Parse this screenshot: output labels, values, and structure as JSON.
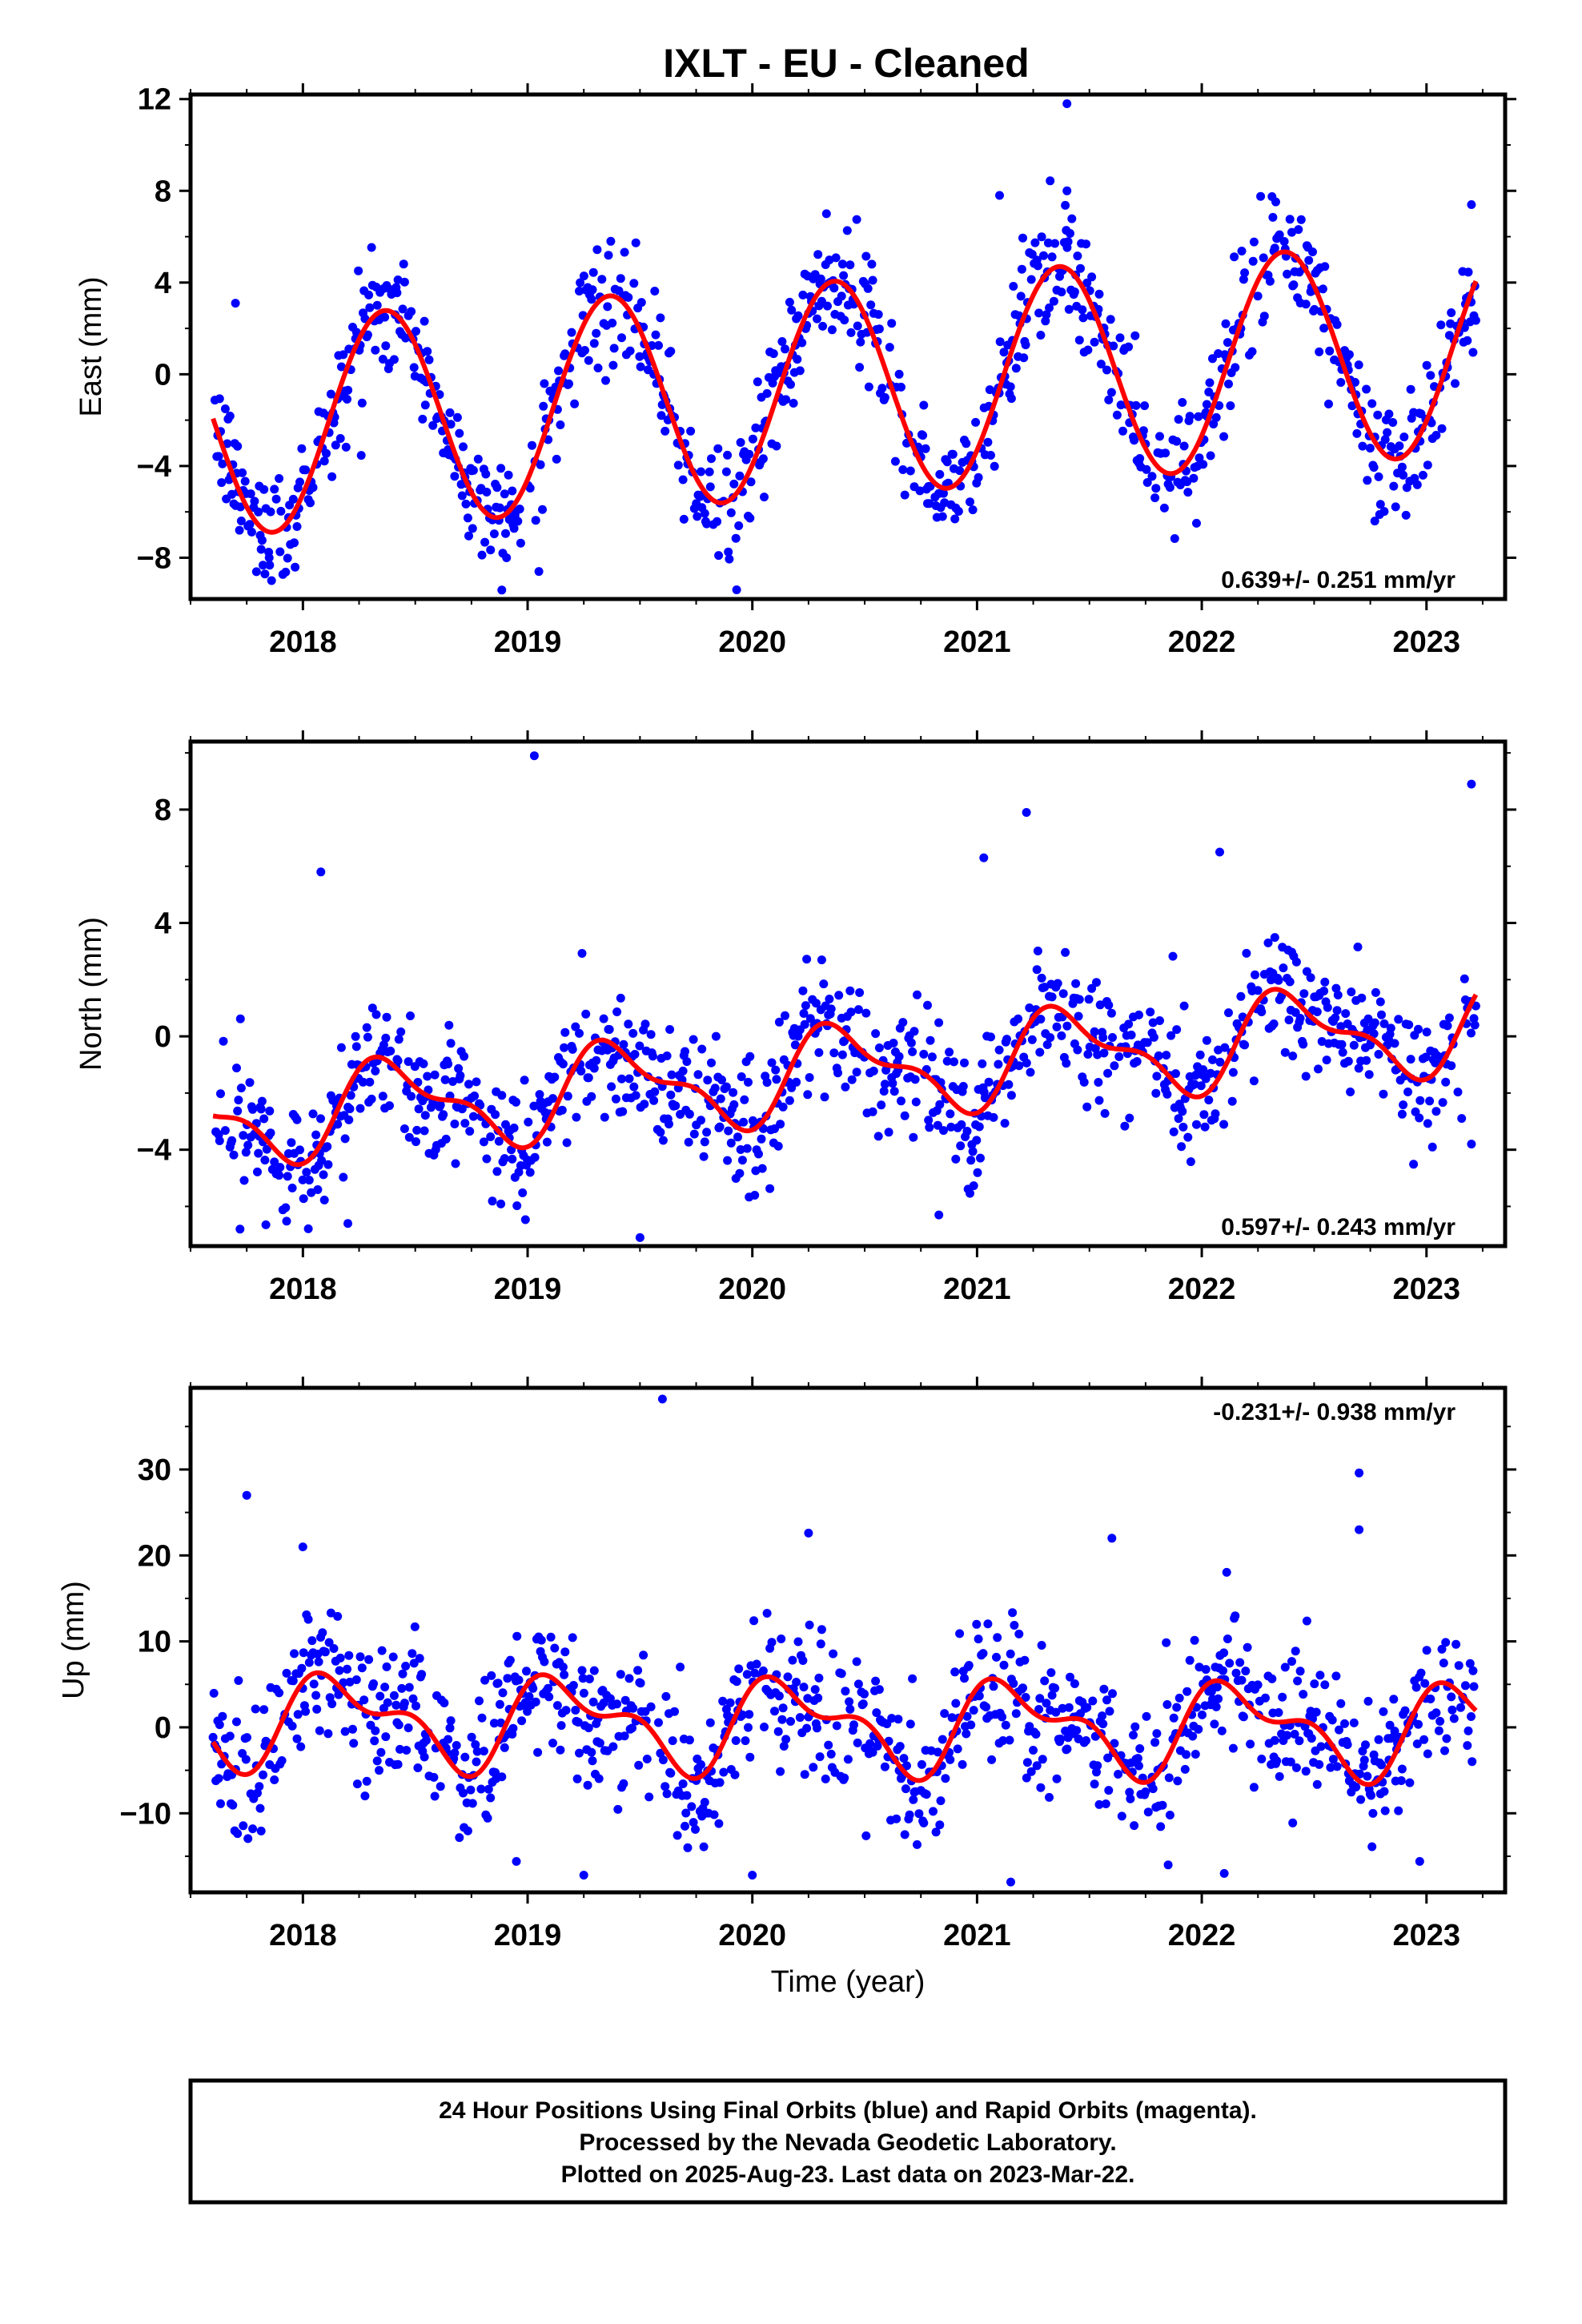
{
  "chart_data": {
    "title": "IXLT  - EU - Cleaned",
    "type": "scatter",
    "xlabel": "Time (year)",
    "xlim": [
      2017.5,
      2023.35
    ],
    "xticks": [
      2018,
      2019,
      2020,
      2021,
      2022,
      2023
    ],
    "data_start": 2017.6,
    "data_end": 2023.22,
    "point_color": "#0000ff",
    "fit_color": "#ff0000",
    "panels": [
      {
        "key": "east",
        "ylabel": "East (mm)",
        "ylim": [
          -9.8,
          12.2
        ],
        "yticks": [
          12,
          8,
          4,
          0,
          -4,
          -8
        ],
        "ytick_labels": [
          "12",
          "8",
          "4",
          "0",
          "−4",
          "−8"
        ],
        "rate_text": "0.639+/- 0.251 mm/yr",
        "rate_position": "bottom-right",
        "trend": [
          -0.85,
          0.639
        ],
        "annual": [
          -3.1,
          3.5
        ],
        "semiannual": [
          0.0,
          0.0
        ],
        "scatter": 1.3,
        "outliers": [
          [
            2019.37,
            5.8
          ],
          [
            2021.4,
            11.8
          ],
          [
            2021.4,
            8.0
          ],
          [
            2020.33,
            7.0
          ],
          [
            2021.1,
            7.8
          ],
          [
            2017.7,
            3.1
          ],
          [
            2017.85,
            -8.0
          ],
          [
            2019.05,
            -8.6
          ],
          [
            2019.93,
            -9.4
          ],
          [
            2019.85,
            -7.9
          ],
          [
            2022.77,
            -6.4
          ],
          [
            2023.2,
            7.4
          ]
        ]
      },
      {
        "key": "north",
        "ylabel": "North (mm)",
        "ylim": [
          -7.4,
          10.4
        ],
        "yticks": [
          8,
          4,
          0,
          -4
        ],
        "ytick_labels": [
          "8",
          "4",
          "0",
          "−4"
        ],
        "rate_text": "0.597+/- 0.243 mm/yr",
        "rate_position": "bottom-right",
        "trend": [
          -1.5,
          0.597
        ],
        "annual": [
          -1.2,
          0.8
        ],
        "semiannual": [
          -0.6,
          -0.2
        ],
        "scatter": 1.15,
        "outliers": [
          [
            2019.03,
            9.9
          ],
          [
            2023.2,
            8.9
          ],
          [
            2021.22,
            7.9
          ],
          [
            2017.72,
            -6.8
          ],
          [
            2018.08,
            5.8
          ],
          [
            2019.5,
            -7.1
          ],
          [
            2020.83,
            -6.3
          ],
          [
            2021.03,
            6.3
          ],
          [
            2022.08,
            6.5
          ],
          [
            2018.2,
            -6.6
          ],
          [
            2023.2,
            -3.8
          ]
        ]
      },
      {
        "key": "up",
        "ylabel": "Up (mm)",
        "ylim": [
          -19.2,
          39.5
        ],
        "yticks": [
          30,
          20,
          10,
          0,
          -10
        ],
        "ytick_labels": [
          "30",
          "20",
          "10",
          "0",
          "−10"
        ],
        "rate_text": "-0.231+/- 0.938 mm/yr",
        "rate_position": "top-right",
        "trend": [
          0.4,
          -0.231
        ],
        "annual": [
          2.0,
          4.0
        ],
        "semiannual": [
          2.4,
          0.6
        ],
        "scatter": 4.2,
        "outliers": [
          [
            2019.6,
            38.2
          ],
          [
            2017.75,
            27.0
          ],
          [
            2022.7,
            29.6
          ],
          [
            2022.7,
            23.0
          ],
          [
            2020.25,
            22.6
          ],
          [
            2021.6,
            22.0
          ],
          [
            2018.0,
            21.0
          ],
          [
            2019.25,
            -17.2
          ],
          [
            2020.0,
            -17.2
          ],
          [
            2021.15,
            -18.0
          ],
          [
            2022.1,
            -17.0
          ],
          [
            2022.97,
            -15.6
          ],
          [
            2018.95,
            -15.6
          ]
        ]
      }
    ]
  },
  "footer": {
    "line1": "24 Hour Positions Using Final Orbits (blue) and Rapid Orbits (magenta).",
    "line2": "Processed by the Nevada Geodetic Laboratory.",
    "line3": "Plotted on 2025-Aug-23. Last data on 2023-Mar-22."
  }
}
